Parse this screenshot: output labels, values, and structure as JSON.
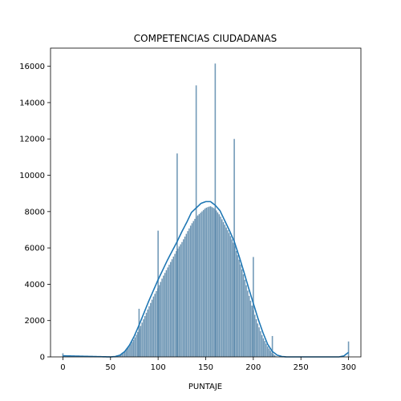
{
  "chart_data": {
    "type": "bar",
    "title": "COMPETENCIAS CIUDADANAS",
    "xlabel": "PUNTAJE",
    "ylabel": "",
    "xlim": [
      -13,
      313
    ],
    "ylim": [
      0,
      17000
    ],
    "xticks": [
      0,
      50,
      100,
      150,
      200,
      250,
      300
    ],
    "yticks": [
      0,
      2000,
      4000,
      6000,
      8000,
      10000,
      12000,
      14000,
      16000
    ],
    "bar_color": "#5b88ab",
    "kde_color": "#1f77b4",
    "grid": false,
    "legend": "none",
    "bins": {
      "start": 0,
      "width": 1.5,
      "count": 201
    },
    "density_curve": {
      "x": [
        0,
        50,
        55,
        60,
        65,
        70,
        75,
        80,
        85,
        90,
        95,
        100,
        105,
        110,
        115,
        120,
        125,
        130,
        135,
        140,
        145,
        150,
        155,
        160,
        165,
        170,
        175,
        180,
        185,
        190,
        195,
        200,
        205,
        210,
        215,
        220,
        225,
        230,
        235,
        240,
        245,
        250,
        260,
        270,
        280,
        290,
        295,
        300
      ],
      "y": [
        60,
        0,
        20,
        100,
        300,
        650,
        1150,
        1750,
        2400,
        3050,
        3650,
        4250,
        4800,
        5350,
        5850,
        6350,
        6900,
        7400,
        7950,
        8200,
        8450,
        8550,
        8550,
        8350,
        8050,
        7500,
        6950,
        6350,
        5550,
        4700,
        3800,
        2950,
        2100,
        1350,
        700,
        300,
        100,
        20,
        0,
        0,
        0,
        0,
        0,
        0,
        0,
        0,
        50,
        250
      ]
    },
    "bar_profile": {
      "x": [
        0,
        50,
        55,
        60,
        65,
        70,
        75,
        80,
        85,
        90,
        95,
        100,
        105,
        110,
        115,
        120,
        125,
        130,
        135,
        140,
        145,
        150,
        155,
        160,
        165,
        170,
        175,
        180,
        185,
        190,
        195,
        200,
        205,
        210,
        215,
        220,
        225,
        230,
        300
      ],
      "y": [
        0,
        0,
        20,
        100,
        300,
        600,
        1000,
        1500,
        2100,
        2700,
        3300,
        3800,
        4400,
        4900,
        5400,
        5900,
        6300,
        6800,
        7300,
        7700,
        7950,
        8200,
        8300,
        8150,
        7800,
        7300,
        6800,
        6200,
        5400,
        4500,
        3500,
        2600,
        1800,
        1100,
        600,
        200,
        0,
        0,
        0
      ]
    },
    "spikes": [
      {
        "x": 0,
        "value": 200
      },
      {
        "x": 80,
        "value": 2650
      },
      {
        "x": 100,
        "value": 6950
      },
      {
        "x": 120,
        "value": 11200
      },
      {
        "x": 140,
        "value": 14950
      },
      {
        "x": 160,
        "value": 16150
      },
      {
        "x": 180,
        "value": 12000
      },
      {
        "x": 200,
        "value": 5500
      },
      {
        "x": 220,
        "value": 1150
      },
      {
        "x": 300,
        "value": 850
      }
    ]
  }
}
